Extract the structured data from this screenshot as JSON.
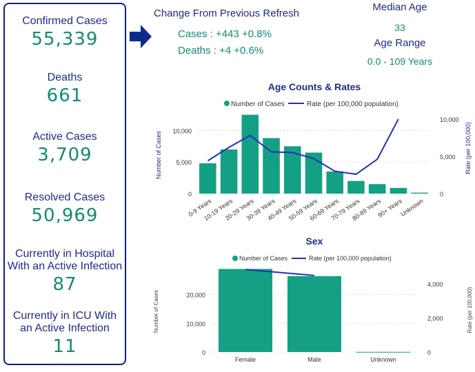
{
  "kpis": {
    "confirmed": {
      "label": "Confirmed Cases",
      "value": "55,339"
    },
    "deaths": {
      "label": "Deaths",
      "value": "661"
    },
    "active": {
      "label": "Active Cases",
      "value": "3,709"
    },
    "resolved": {
      "label": "Resolved Cases",
      "value": "50,969"
    },
    "hospital": {
      "label_line1": "Currently in Hospital",
      "label_line2": "With an Active Infection",
      "value": "87"
    },
    "icu": {
      "label_line1": "Currently in ICU With",
      "label_line2": "an Active Infection",
      "value": "11"
    }
  },
  "change": {
    "title": "Change From Previous Refresh",
    "cases": "Cases : +443 +0.8%",
    "deaths": "Deaths : +4 +0.6%"
  },
  "median_age": {
    "label": "Median Age",
    "value": "33"
  },
  "age_range": {
    "label": "Age Range",
    "value": "0.0 - 109 Years"
  },
  "colors": {
    "accent_green": "#138a73",
    "navy": "#1f2a8a",
    "bar": "#14a084",
    "line": "#2230b8"
  },
  "chart_data": [
    {
      "type": "bar",
      "title": "Age Counts & Rates",
      "legend": [
        "Number of Cases",
        "Rate (per 100,000 population)"
      ],
      "categories": [
        "0-9 Years",
        "10-19 Years",
        "20-29 Years",
        "30-39 Years",
        "40-49 Years",
        "50-59 Years",
        "60-69 Years",
        "70-79 Years",
        "80-89 Years",
        "90+ Years",
        "Unknown"
      ],
      "series": [
        {
          "name": "Number of Cases",
          "axis": "left",
          "values": [
            4800,
            7000,
            12500,
            8800,
            7500,
            6500,
            3500,
            2000,
            1500,
            900,
            150
          ]
        },
        {
          "name": "Rate (per 100,000 population)",
          "axis": "right",
          "kind": "line",
          "values": [
            4400,
            6200,
            7800,
            5600,
            5500,
            4700,
            3000,
            2600,
            4600,
            10000,
            null
          ]
        }
      ],
      "ylabel": "Number of Cases",
      "ylabel_right": "Rate (per 100,000)",
      "ylim": [
        0,
        13000
      ],
      "yticks": [
        0,
        5000,
        10000
      ],
      "ytick_labels": [
        "0",
        "5,000",
        "10,000"
      ],
      "ylim_right": [
        0,
        11000
      ],
      "yticks_right": [
        0,
        5000,
        10000
      ],
      "ytick_labels_right": [
        "0",
        "5,000",
        "10,000"
      ]
    },
    {
      "type": "bar",
      "title": "Sex",
      "legend": [
        "Number of Cases",
        "Rate (per 100,000 population)"
      ],
      "categories": [
        "Female",
        "Male",
        "Unknown"
      ],
      "series": [
        {
          "name": "Number of Cases",
          "axis": "left",
          "values": [
            28900,
            26400,
            50
          ]
        },
        {
          "name": "Rate (per 100,000 population)",
          "axis": "right",
          "kind": "line",
          "values": [
            4850,
            4500,
            null
          ]
        }
      ],
      "ylabel": "Number of Cases",
      "ylabel_right": "Rate (per 100,000)",
      "ylim": [
        0,
        29000
      ],
      "yticks": [
        0,
        10000,
        20000
      ],
      "ytick_labels": [
        "0",
        "10,000",
        "20,000"
      ],
      "ylim_right": [
        0,
        4900
      ],
      "yticks_right": [
        0,
        2000,
        4000
      ],
      "ytick_labels_right": [
        "0",
        "2,000",
        "4,000"
      ]
    }
  ]
}
